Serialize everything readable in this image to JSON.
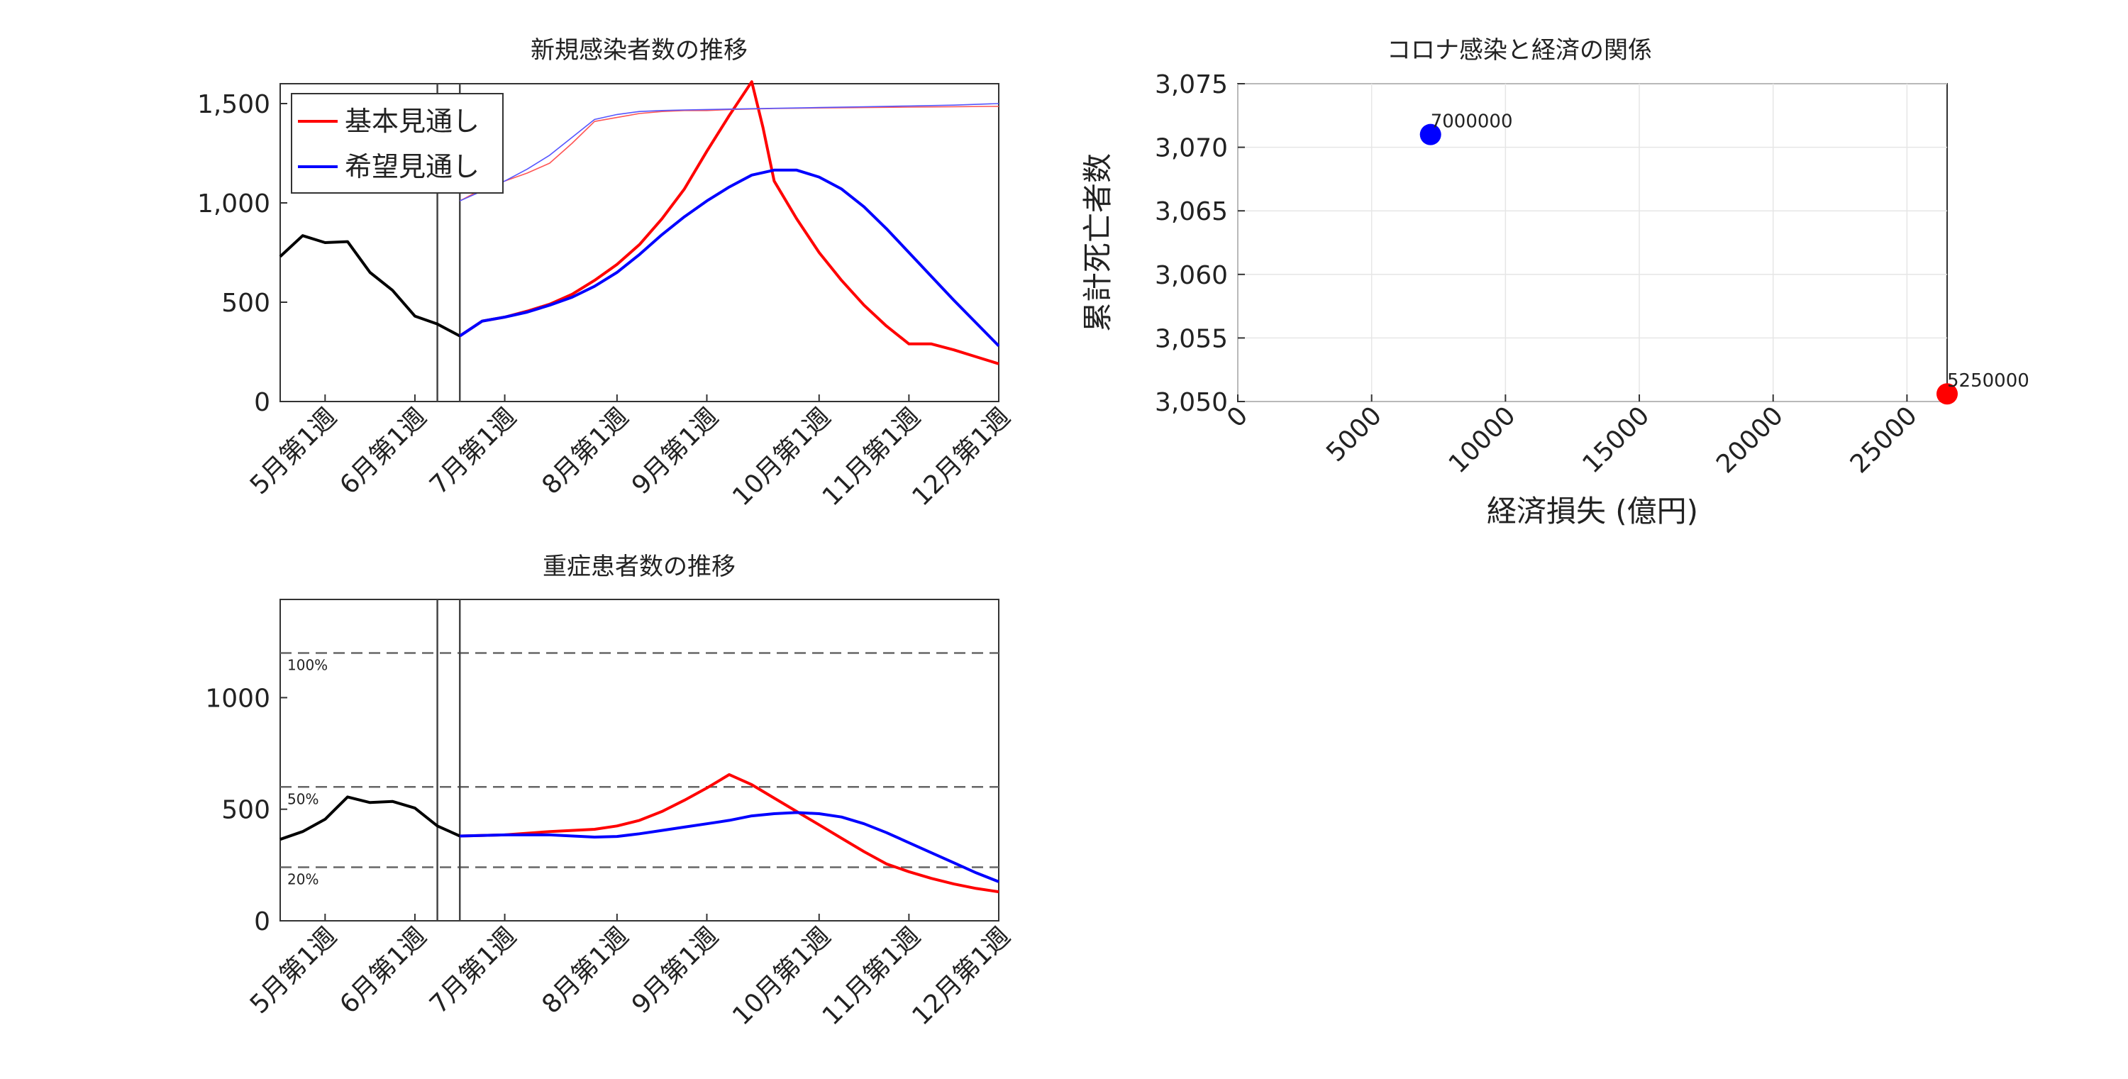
{
  "chart_data": [
    {
      "id": "new_cases",
      "type": "line",
      "title": "新規感染者数の推移",
      "xlabel": "",
      "ylabel": "",
      "categories": [
        "5月第1週",
        "6月第1週",
        "7月第1週",
        "8月第1週",
        "9月第1週",
        "10月第1週",
        "11月第1週",
        "12月第1週"
      ],
      "category_weeks": [
        2,
        6,
        10,
        15,
        19,
        24,
        28,
        32
      ],
      "xlim": [
        0,
        32
      ],
      "ylim": [
        0,
        1600
      ],
      "yticks": [
        0,
        500,
        1000,
        1500
      ],
      "ytick_labels": [
        "0",
        "500",
        "1,000",
        "1,500"
      ],
      "vlines": [
        7,
        8
      ],
      "legend": {
        "placement": "top-left",
        "entries": [
          "基本見通し",
          "希望見通し"
        ]
      },
      "series": [
        {
          "name": "",
          "color": "#000000",
          "x": [
            0,
            1,
            2,
            3,
            4,
            5,
            6,
            7,
            8
          ],
          "y": [
            730,
            835,
            800,
            805,
            650,
            560,
            430,
            390,
            330
          ]
        },
        {
          "name": "基本見通し",
          "color": "#ff0000",
          "x": [
            8,
            9,
            10,
            11,
            12,
            13,
            14,
            15,
            16,
            17,
            18,
            19,
            20,
            21,
            21.5,
            22,
            23,
            24,
            25,
            26,
            27,
            28,
            29,
            30,
            31,
            32
          ],
          "y": [
            330,
            405,
            425,
            455,
            490,
            540,
            610,
            690,
            790,
            920,
            1070,
            1260,
            1440,
            1610,
            1380,
            1110,
            920,
            750,
            610,
            485,
            380,
            290,
            290,
            260,
            225,
            190
          ]
        },
        {
          "name": "希望見通し",
          "color": "#0000ff",
          "x": [
            8,
            9,
            10,
            11,
            12,
            13,
            14,
            15,
            16,
            17,
            18,
            19,
            20,
            21,
            22,
            23,
            24,
            25,
            26,
            27,
            28,
            29,
            30,
            31,
            32
          ],
          "y": [
            330,
            405,
            425,
            450,
            485,
            525,
            580,
            650,
            740,
            840,
            930,
            1010,
            1080,
            1140,
            1165,
            1165,
            1130,
            1070,
            980,
            870,
            750,
            630,
            510,
            395,
            280
          ]
        },
        {
          "name": "",
          "color": "#ff5555",
          "thin": true,
          "x": [
            8,
            9,
            10,
            11,
            12,
            13,
            14,
            15,
            16,
            17,
            18,
            19,
            20,
            22,
            24,
            26,
            28,
            30,
            32
          ],
          "y": [
            1010,
            1070,
            1110,
            1150,
            1200,
            1300,
            1410,
            1430,
            1450,
            1460,
            1465,
            1465,
            1470,
            1475,
            1478,
            1480,
            1482,
            1484,
            1486
          ]
        },
        {
          "name": "",
          "color": "#5555ff",
          "thin": true,
          "x": [
            8,
            9,
            10,
            11,
            12,
            13,
            14,
            15,
            16,
            17,
            18,
            19,
            20,
            22,
            24,
            26,
            28,
            30,
            32
          ],
          "y": [
            1010,
            1060,
            1110,
            1170,
            1240,
            1330,
            1420,
            1445,
            1460,
            1465,
            1468,
            1470,
            1472,
            1476,
            1480,
            1484,
            1488,
            1492,
            1500
          ]
        }
      ]
    },
    {
      "id": "severe",
      "type": "line",
      "title": "重症患者数の推移",
      "xlabel": "",
      "ylabel": "",
      "categories": [
        "5月第1週",
        "6月第1週",
        "7月第1週",
        "8月第1週",
        "9月第1週",
        "10月第1週",
        "11月第1週",
        "12月第1週"
      ],
      "category_weeks": [
        2,
        6,
        10,
        15,
        19,
        24,
        28,
        32
      ],
      "xlim": [
        0,
        32
      ],
      "ylim": [
        0,
        1440
      ],
      "yticks": [
        0,
        500,
        1000
      ],
      "ytick_labels": [
        "0",
        "500",
        "1000"
      ],
      "vlines": [
        7,
        8
      ],
      "hlines": [
        {
          "y": 1200,
          "label": "100%"
        },
        {
          "y": 600,
          "label": "50%"
        },
        {
          "y": 240,
          "label": "20%"
        }
      ],
      "series": [
        {
          "name": "",
          "color": "#000000",
          "x": [
            0,
            1,
            2,
            3,
            4,
            5,
            6,
            7,
            8
          ],
          "y": [
            365,
            400,
            455,
            555,
            530,
            535,
            505,
            425,
            380
          ]
        },
        {
          "name": "基本見通し",
          "color": "#ff0000",
          "x": [
            8,
            10,
            12,
            14,
            15,
            16,
            17,
            18,
            19,
            20,
            21,
            22,
            23,
            24,
            25,
            26,
            27,
            28,
            29,
            30,
            31,
            32
          ],
          "y": [
            380,
            385,
            400,
            410,
            425,
            450,
            490,
            540,
            595,
            655,
            610,
            550,
            490,
            430,
            370,
            310,
            255,
            220,
            190,
            165,
            145,
            130
          ]
        },
        {
          "name": "希望見通し",
          "color": "#0000ff",
          "x": [
            8,
            10,
            12,
            14,
            15,
            16,
            17,
            18,
            19,
            20,
            21,
            22,
            23,
            24,
            25,
            26,
            27,
            28,
            29,
            30,
            31,
            32
          ],
          "y": [
            380,
            385,
            385,
            375,
            378,
            390,
            405,
            420,
            435,
            450,
            470,
            480,
            485,
            480,
            465,
            435,
            395,
            350,
            305,
            260,
            215,
            175
          ]
        }
      ]
    },
    {
      "id": "economy",
      "type": "scatter",
      "title": "コロナ感染と経済の関係",
      "xlabel": "経済損失 (億円)",
      "ylabel": "累計死亡者数",
      "xlim": [
        0,
        26500
      ],
      "ylim": [
        3050,
        3075
      ],
      "xticks": [
        0,
        5000,
        10000,
        15000,
        20000,
        25000
      ],
      "xtick_labels": [
        "0",
        "5000",
        "10000",
        "15000",
        "20000",
        "25000"
      ],
      "yticks": [
        3050,
        3055,
        3060,
        3065,
        3070,
        3075
      ],
      "ytick_labels": [
        "3,050",
        "3,055",
        "3,060",
        "3,065",
        "3,070",
        "3,075"
      ],
      "grid": true,
      "points": [
        {
          "x": 7200,
          "y": 3071,
          "label": "7000000",
          "color": "#0000ff"
        },
        {
          "x": 26500,
          "y": 3050.6,
          "label": "5250000",
          "color": "#ff0000"
        }
      ]
    }
  ]
}
